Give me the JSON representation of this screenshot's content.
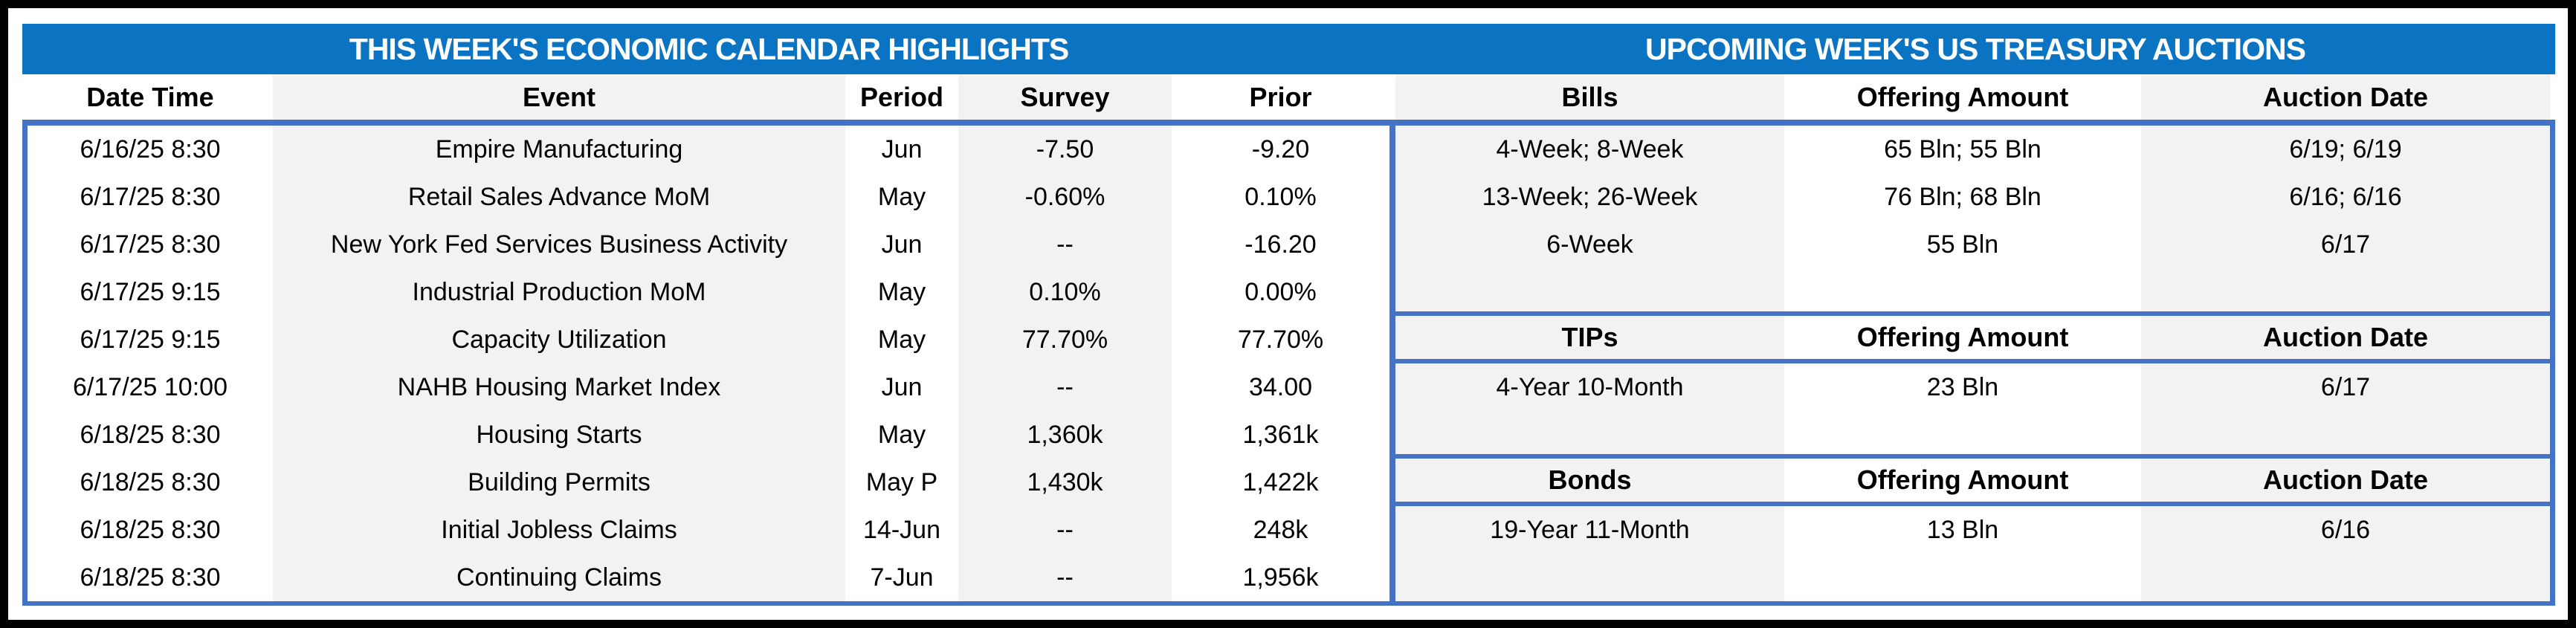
{
  "colors": {
    "title_bar_blue": "#0a74c2",
    "table_border_blue": "#4472c4",
    "column_stripe_gray": "#f2f2f2",
    "frame_black": "#000000",
    "text_black": "#000000",
    "title_text_white": "#ffffff"
  },
  "left_panel": {
    "title": "THIS WEEK'S ECONOMIC CALENDAR HIGHLIGHTS",
    "columns": [
      "Date Time",
      "Event",
      "Period",
      "Survey",
      "Prior"
    ],
    "rows": [
      [
        "6/16/25 8:30",
        "Empire Manufacturing",
        "Jun",
        "-7.50",
        "-9.20"
      ],
      [
        "6/17/25 8:30",
        "Retail Sales Advance MoM",
        "May",
        "-0.60%",
        "0.10%"
      ],
      [
        "6/17/25 8:30",
        "New York Fed Services Business Activity",
        "Jun",
        "--",
        "-16.20"
      ],
      [
        "6/17/25 9:15",
        "Industrial Production MoM",
        "May",
        "0.10%",
        "0.00%"
      ],
      [
        "6/17/25 9:15",
        "Capacity Utilization",
        "May",
        "77.70%",
        "77.70%"
      ],
      [
        "6/17/25 10:00",
        "NAHB Housing Market Index",
        "Jun",
        "--",
        "34.00"
      ],
      [
        "6/18/25 8:30",
        "Housing Starts",
        "May",
        "1,360k",
        "1,361k"
      ],
      [
        "6/18/25 8:30",
        "Building Permits",
        "May P",
        "1,430k",
        "1,422k"
      ],
      [
        "6/18/25 8:30",
        "Initial Jobless Claims",
        "14-Jun",
        "--",
        "248k"
      ],
      [
        "6/18/25 8:30",
        "Continuing Claims",
        "7-Jun",
        "--",
        "1,956k"
      ]
    ]
  },
  "right_panel": {
    "title": "UPCOMING WEEK'S US TREASURY AUCTIONS",
    "sections": [
      {
        "label": "Bills",
        "columns": [
          "Bills",
          "Offering Amount",
          "Auction Date"
        ],
        "rows": [
          [
            "4-Week; 8-Week",
            "65 Bln; 55 Bln",
            "6/19; 6/19"
          ],
          [
            "13-Week; 26-Week",
            "76 Bln; 68 Bln",
            "6/16; 6/16"
          ],
          [
            "6-Week",
            "55 Bln",
            "6/17"
          ]
        ]
      },
      {
        "label": "TIPs",
        "columns": [
          "TIPs",
          "Offering Amount",
          "Auction Date"
        ],
        "rows": [
          [
            "4-Year 10-Month",
            "23 Bln",
            "6/17"
          ]
        ]
      },
      {
        "label": "Bonds",
        "columns": [
          "Bonds",
          "Offering Amount",
          "Auction Date"
        ],
        "rows": [
          [
            "19-Year 11-Month",
            "13 Bln",
            "6/16"
          ]
        ]
      }
    ]
  }
}
